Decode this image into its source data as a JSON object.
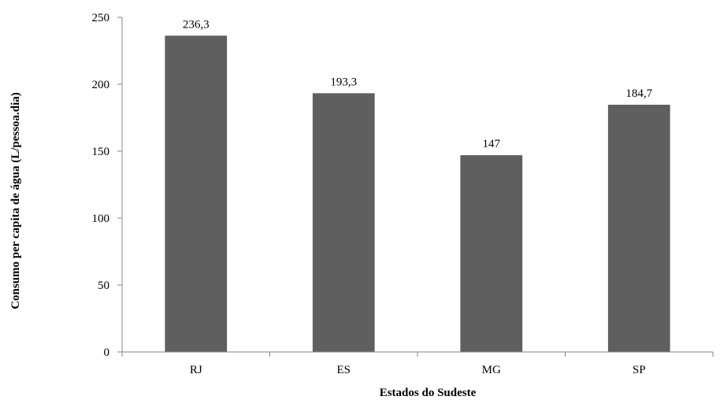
{
  "chart_data": {
    "type": "bar",
    "title": "",
    "xlabel": "Estados do Sudeste",
    "ylabel": "Consumo per capita de água (L/pessoa.dia)",
    "categories": [
      "RJ",
      "ES",
      "MG",
      "SP"
    ],
    "values": [
      236.3,
      193.3,
      147,
      184.7
    ],
    "data_labels": [
      "236,3",
      "193,3",
      "147",
      "184,7"
    ],
    "ylim": [
      0,
      250
    ],
    "y_ticks": [
      0,
      50,
      100,
      150,
      200,
      250
    ],
    "y_tick_labels": [
      "0",
      "50",
      "100",
      "150",
      "200",
      "250"
    ],
    "grid": false,
    "legend": "none",
    "colors": {
      "bar": "#5f5f5f",
      "axis": "#868686",
      "text": "#000000"
    }
  }
}
